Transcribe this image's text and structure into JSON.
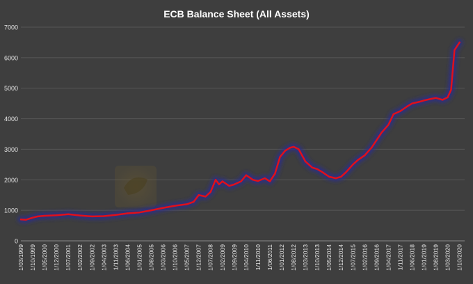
{
  "chart_data": {
    "type": "line",
    "title": "ECB Balance Sheet (All Assets)",
    "xlabel": "",
    "ylabel": "",
    "ylim": [
      0,
      7000
    ],
    "y_ticks": [
      0,
      1000,
      2000,
      3000,
      4000,
      5000,
      6000,
      7000
    ],
    "grid": true,
    "legend": "none",
    "x_tick_labels": [
      "1/03/1999",
      "1/10/1999",
      "1/05/2000",
      "1/12/2000",
      "1/07/2001",
      "1/02/2002",
      "1/09/2002",
      "1/04/2003",
      "1/11/2003",
      "1/06/2004",
      "1/01/2005",
      "1/08/2005",
      "1/03/2006",
      "1/10/2006",
      "1/05/2007",
      "1/12/2007",
      "1/07/2008",
      "1/02/2009",
      "1/09/2009",
      "1/04/2010",
      "1/11/2010",
      "1/06/2011",
      "1/01/2012",
      "1/08/2012",
      "1/03/2013",
      "1/10/2013",
      "1/05/2014",
      "1/12/2014",
      "1/07/2015",
      "1/02/2016",
      "1/09/2016",
      "1/04/2017",
      "1/11/2017",
      "1/06/2018",
      "1/01/2019",
      "1/08/2019",
      "1/03/2020",
      "1/10/2020"
    ],
    "series": [
      {
        "color": "#e0101a",
        "glow": "#2a2f8c",
        "x": [
          "1999-03",
          "1999-06",
          "1999-10",
          "2000-01",
          "2000-05",
          "2000-12",
          "2001-07",
          "2002-02",
          "2002-09",
          "2003-04",
          "2003-11",
          "2004-06",
          "2005-01",
          "2005-08",
          "2006-03",
          "2006-10",
          "2007-05",
          "2007-09",
          "2007-12",
          "2008-04",
          "2008-07",
          "2008-10",
          "2008-12",
          "2009-02",
          "2009-06",
          "2009-09",
          "2010-01",
          "2010-04",
          "2010-08",
          "2010-11",
          "2011-03",
          "2011-06",
          "2011-09",
          "2011-12",
          "2012-03",
          "2012-06",
          "2012-08",
          "2012-11",
          "2013-03",
          "2013-07",
          "2013-10",
          "2014-01",
          "2014-05",
          "2014-09",
          "2014-12",
          "2015-03",
          "2015-07",
          "2015-10",
          "2016-02",
          "2016-06",
          "2016-09",
          "2016-12",
          "2017-04",
          "2017-07",
          "2017-11",
          "2018-03",
          "2018-06",
          "2018-10",
          "2019-01",
          "2019-05",
          "2019-08",
          "2019-12",
          "2020-01",
          "2020-03",
          "2020-05",
          "2020-07",
          "2020-10"
        ],
        "values": [
          700,
          690,
          760,
          800,
          820,
          840,
          870,
          830,
          800,
          810,
          850,
          900,
          930,
          1000,
          1080,
          1150,
          1200,
          1280,
          1500,
          1450,
          1600,
          2000,
          1850,
          1950,
          1800,
          1850,
          1950,
          2150,
          2000,
          1960,
          2050,
          1950,
          2200,
          2750,
          2950,
          3050,
          3080,
          3000,
          2600,
          2400,
          2350,
          2250,
          2100,
          2050,
          2100,
          2250,
          2500,
          2650,
          2800,
          3050,
          3300,
          3550,
          3800,
          4150,
          4250,
          4400,
          4500,
          4550,
          4600,
          4650,
          4680,
          4620,
          4650,
          4700,
          4950,
          6250,
          6500
        ]
      }
    ]
  }
}
